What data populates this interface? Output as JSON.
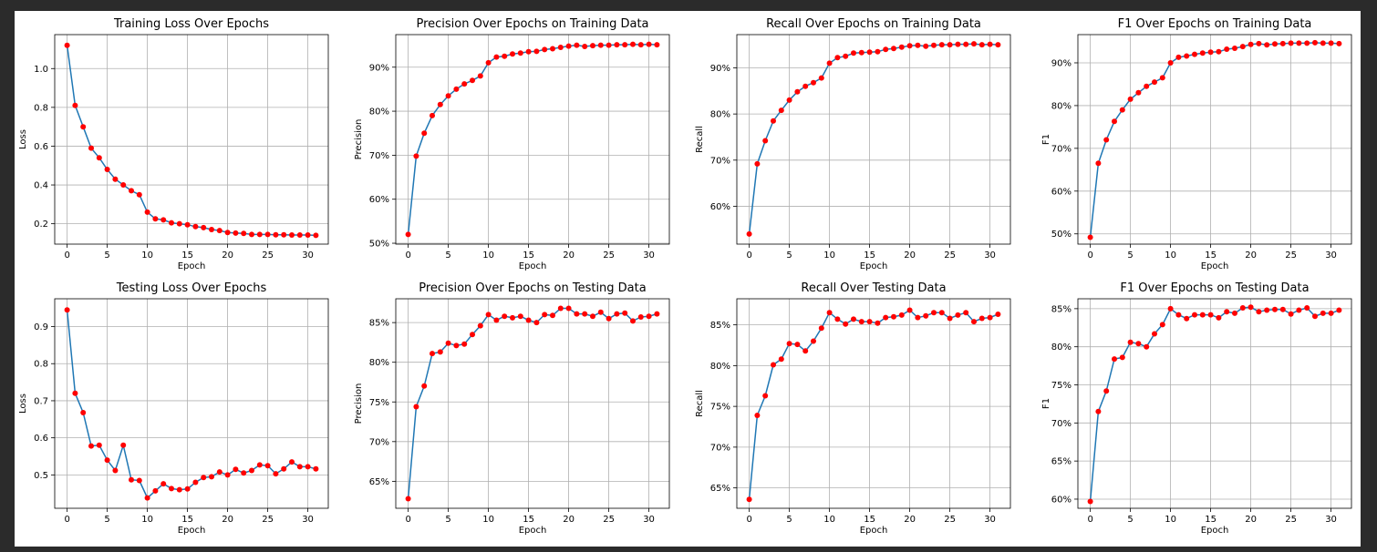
{
  "chart_data": [
    {
      "type": "line",
      "title": "Training Loss Over Epochs",
      "xlabel": "Epoch",
      "ylabel": "Loss",
      "xlim": [
        -1.55,
        32.55
      ],
      "ylim": [
        0.095,
        1.175
      ],
      "xticks": [
        0,
        5,
        10,
        15,
        20,
        25,
        30
      ],
      "yticks": [
        0.2,
        0.4,
        0.6,
        0.8,
        1.0
      ],
      "ytick_labels": [
        "0.2",
        "0.4",
        "0.6",
        "0.8",
        "1.0"
      ],
      "grid": true,
      "x": [
        0,
        1,
        2,
        3,
        4,
        5,
        6,
        7,
        8,
        9,
        10,
        11,
        12,
        13,
        14,
        15,
        16,
        17,
        18,
        19,
        20,
        21,
        22,
        23,
        24,
        25,
        26,
        27,
        28,
        29,
        30,
        31
      ],
      "y": [
        1.12,
        0.81,
        0.7,
        0.59,
        0.54,
        0.48,
        0.43,
        0.4,
        0.37,
        0.35,
        0.26,
        0.225,
        0.22,
        0.205,
        0.2,
        0.195,
        0.185,
        0.18,
        0.17,
        0.165,
        0.155,
        0.152,
        0.15,
        0.145,
        0.145,
        0.145,
        0.143,
        0.143,
        0.142,
        0.142,
        0.142,
        0.14
      ]
    },
    {
      "type": "line",
      "title": "Precision Over Epochs on Training Data",
      "xlabel": "Epoch",
      "ylabel": "Precision",
      "xlim": [
        -1.55,
        32.55
      ],
      "ylim": [
        49.8,
        97.4
      ],
      "xticks": [
        0,
        5,
        10,
        15,
        20,
        25,
        30
      ],
      "yticks": [
        50,
        60,
        70,
        80,
        90
      ],
      "ytick_labels": [
        "50%",
        "60%",
        "70%",
        "80%",
        "90%"
      ],
      "grid": true,
      "x": [
        0,
        1,
        2,
        3,
        4,
        5,
        6,
        7,
        8,
        9,
        10,
        11,
        12,
        13,
        14,
        15,
        16,
        17,
        18,
        19,
        20,
        21,
        22,
        23,
        24,
        25,
        26,
        27,
        28,
        29,
        30,
        31
      ],
      "y": [
        52,
        69.8,
        75,
        79,
        81.5,
        83.5,
        85,
        86.2,
        87,
        88,
        91,
        92.3,
        92.5,
        93,
        93.2,
        93.5,
        93.6,
        94,
        94.2,
        94.5,
        94.8,
        95,
        94.7,
        94.9,
        95,
        95,
        95.1,
        95.1,
        95.2,
        95.1,
        95.2,
        95.1
      ]
    },
    {
      "type": "line",
      "title": "Recall Over Epochs on Training Data",
      "xlabel": "Epoch",
      "ylabel": "Recall",
      "xlim": [
        -1.55,
        32.55
      ],
      "ylim": [
        51.8,
        97.2
      ],
      "xticks": [
        0,
        5,
        10,
        15,
        20,
        25,
        30
      ],
      "yticks": [
        60,
        70,
        80,
        90
      ],
      "ytick_labels": [
        "60%",
        "70%",
        "80%",
        "90%"
      ],
      "grid": true,
      "x": [
        0,
        1,
        2,
        3,
        4,
        5,
        6,
        7,
        8,
        9,
        10,
        11,
        12,
        13,
        14,
        15,
        16,
        17,
        18,
        19,
        20,
        21,
        22,
        23,
        24,
        25,
        26,
        27,
        28,
        29,
        30,
        31
      ],
      "y": [
        54,
        69.2,
        74.2,
        78.5,
        80.8,
        83,
        84.8,
        86,
        86.8,
        87.8,
        91,
        92.2,
        92.5,
        93.2,
        93.3,
        93.4,
        93.5,
        94,
        94.2,
        94.5,
        94.8,
        94.9,
        94.7,
        94.9,
        95,
        95,
        95.1,
        95.1,
        95.2,
        95,
        95.1,
        95
      ]
    },
    {
      "type": "line",
      "title": "F1 Over Epochs on Training Data",
      "xlabel": "Epoch",
      "ylabel": "F1",
      "xlim": [
        -1.55,
        32.55
      ],
      "ylim": [
        47.6,
        96.6
      ],
      "xticks": [
        0,
        5,
        10,
        15,
        20,
        25,
        30
      ],
      "yticks": [
        50,
        60,
        70,
        80,
        90
      ],
      "ytick_labels": [
        "50%",
        "60%",
        "70%",
        "80%",
        "90%"
      ],
      "grid": true,
      "x": [
        0,
        1,
        2,
        3,
        4,
        5,
        6,
        7,
        8,
        9,
        10,
        11,
        12,
        13,
        14,
        15,
        16,
        17,
        18,
        19,
        20,
        21,
        22,
        23,
        24,
        25,
        26,
        27,
        28,
        29,
        30,
        31
      ],
      "y": [
        49.2,
        66.5,
        72,
        76.3,
        79,
        81.5,
        83,
        84.5,
        85.5,
        86.5,
        90,
        91.3,
        91.6,
        92,
        92.3,
        92.5,
        92.6,
        93.2,
        93.4,
        93.8,
        94.3,
        94.5,
        94.2,
        94.4,
        94.5,
        94.6,
        94.6,
        94.6,
        94.7,
        94.6,
        94.6,
        94.5
      ]
    },
    {
      "type": "line",
      "title": "Testing Loss Over Epochs",
      "xlabel": "Epoch",
      "ylabel": "Loss",
      "xlim": [
        -1.55,
        32.55
      ],
      "ylim": [
        0.41,
        0.975
      ],
      "xticks": [
        0,
        5,
        10,
        15,
        20,
        25,
        30
      ],
      "yticks": [
        0.5,
        0.6,
        0.7,
        0.8,
        0.9
      ],
      "ytick_labels": [
        "0.5",
        "0.6",
        "0.7",
        "0.8",
        "0.9"
      ],
      "grid": true,
      "x": [
        0,
        1,
        2,
        3,
        4,
        5,
        6,
        7,
        8,
        9,
        10,
        11,
        12,
        13,
        14,
        15,
        16,
        17,
        18,
        19,
        20,
        21,
        22,
        23,
        24,
        25,
        26,
        27,
        28,
        29,
        30,
        31
      ],
      "y": [
        0.945,
        0.72,
        0.668,
        0.578,
        0.58,
        0.54,
        0.512,
        0.58,
        0.487,
        0.485,
        0.438,
        0.457,
        0.476,
        0.463,
        0.46,
        0.462,
        0.48,
        0.493,
        0.495,
        0.508,
        0.5,
        0.515,
        0.505,
        0.512,
        0.527,
        0.525,
        0.503,
        0.516,
        0.535,
        0.522,
        0.522,
        0.516
      ]
    },
    {
      "type": "line",
      "title": "Precision Over Epochs on Testing Data",
      "xlabel": "Epoch",
      "ylabel": "Precision",
      "xlim": [
        -1.55,
        32.55
      ],
      "ylim": [
        61.6,
        88.0
      ],
      "xticks": [
        0,
        5,
        10,
        15,
        20,
        25,
        30
      ],
      "yticks": [
        65,
        70,
        75,
        80,
        85
      ],
      "ytick_labels": [
        "65%",
        "70%",
        "75%",
        "80%",
        "85%"
      ],
      "grid": true,
      "x": [
        0,
        1,
        2,
        3,
        4,
        5,
        6,
        7,
        8,
        9,
        10,
        11,
        12,
        13,
        14,
        15,
        16,
        17,
        18,
        19,
        20,
        21,
        22,
        23,
        24,
        25,
        26,
        27,
        28,
        29,
        30,
        31
      ],
      "y": [
        62.8,
        74.4,
        77,
        81.1,
        81.3,
        82.4,
        82.1,
        82.3,
        83.5,
        84.6,
        86,
        85.3,
        85.8,
        85.6,
        85.8,
        85.3,
        85,
        86,
        85.9,
        86.8,
        86.8,
        86.1,
        86.1,
        85.8,
        86.3,
        85.5,
        86.1,
        86.2,
        85.2,
        85.7,
        85.8,
        86.1
      ]
    },
    {
      "type": "line",
      "title": "Recall Over Testing Data",
      "xlabel": "Epoch",
      "ylabel": "Recall",
      "xlim": [
        -1.55,
        32.55
      ],
      "ylim": [
        62.5,
        88.2
      ],
      "xticks": [
        0,
        5,
        10,
        15,
        20,
        25,
        30
      ],
      "yticks": [
        65,
        70,
        75,
        80,
        85
      ],
      "ytick_labels": [
        "65%",
        "70%",
        "75%",
        "80%",
        "85%"
      ],
      "grid": true,
      "x": [
        0,
        1,
        2,
        3,
        4,
        5,
        6,
        7,
        8,
        9,
        10,
        11,
        12,
        13,
        14,
        15,
        16,
        17,
        18,
        19,
        20,
        21,
        22,
        23,
        24,
        25,
        26,
        27,
        28,
        29,
        30,
        31
      ],
      "y": [
        63.6,
        73.9,
        76.3,
        80.1,
        80.8,
        82.7,
        82.6,
        81.8,
        83,
        84.6,
        86.5,
        85.7,
        85.1,
        85.7,
        85.4,
        85.4,
        85.2,
        85.9,
        86,
        86.2,
        86.8,
        85.9,
        86.1,
        86.5,
        86.5,
        85.8,
        86.2,
        86.5,
        85.4,
        85.8,
        85.9,
        86.3
      ]
    },
    {
      "type": "line",
      "title": "F1 Over Epochs on Testing Data",
      "xlabel": "Epoch",
      "ylabel": "F1",
      "xlim": [
        -1.55,
        32.55
      ],
      "ylim": [
        58.8,
        86.3
      ],
      "xticks": [
        0,
        5,
        10,
        15,
        20,
        25,
        30
      ],
      "yticks": [
        60,
        65,
        70,
        75,
        80,
        85
      ],
      "ytick_labels": [
        "60%",
        "65%",
        "70%",
        "75%",
        "80%",
        "85%"
      ],
      "grid": true,
      "x": [
        0,
        1,
        2,
        3,
        4,
        5,
        6,
        7,
        8,
        9,
        10,
        11,
        12,
        13,
        14,
        15,
        16,
        17,
        18,
        19,
        20,
        21,
        22,
        23,
        24,
        25,
        26,
        27,
        28,
        29,
        30,
        31
      ],
      "y": [
        59.7,
        71.5,
        74.2,
        78.4,
        78.6,
        80.6,
        80.4,
        80,
        81.7,
        82.9,
        85,
        84.2,
        83.7,
        84.2,
        84.2,
        84.2,
        83.8,
        84.6,
        84.4,
        85.1,
        85.2,
        84.6,
        84.8,
        84.9,
        84.9,
        84.3,
        84.8,
        85.1,
        84,
        84.4,
        84.4,
        84.8
      ]
    }
  ]
}
